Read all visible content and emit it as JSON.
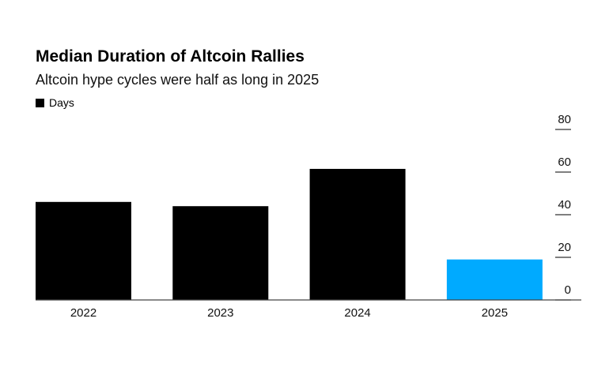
{
  "chart_data": {
    "type": "bar",
    "title": "Median Duration of Altcoin Rallies",
    "subtitle": "Altcoin hype cycles were half as long in 2025",
    "legend": [
      {
        "label": "Days",
        "color": "#000000"
      }
    ],
    "legend_placement": "top-left",
    "categories": [
      "2022",
      "2023",
      "2024",
      "2025"
    ],
    "values": [
      46,
      44,
      61.5,
      19
    ],
    "colors": [
      "#000000",
      "#000000",
      "#000000",
      "#00aaff"
    ],
    "ylim": [
      0,
      80
    ],
    "yticks": [
      0,
      20,
      40,
      60,
      80
    ],
    "yaxis_side": "right",
    "xlabel": "",
    "ylabel": ""
  }
}
